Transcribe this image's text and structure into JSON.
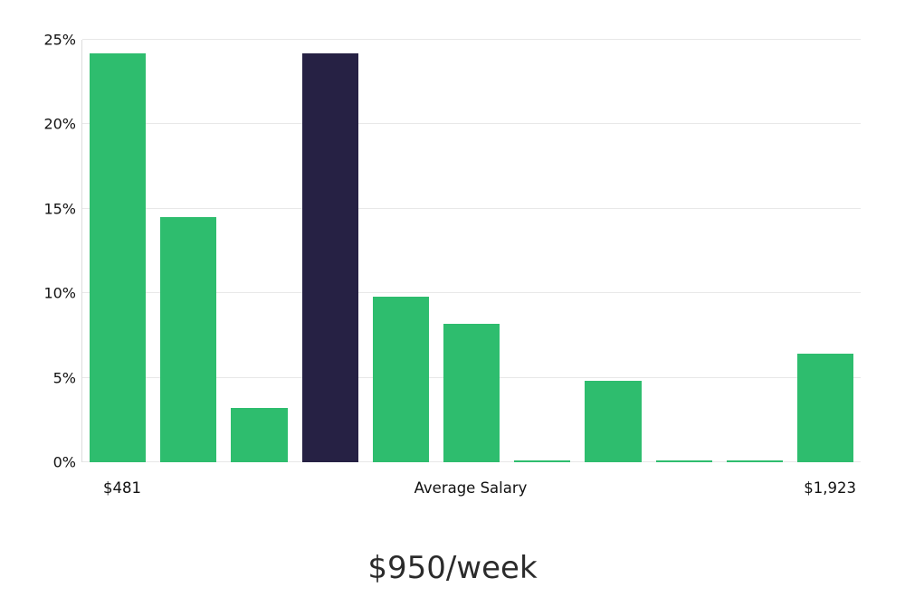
{
  "chart_data": {
    "type": "bar",
    "title": "",
    "xlabel": "",
    "ylabel": "",
    "values": [
      24.2,
      14.5,
      3.2,
      24.2,
      9.8,
      8.2,
      0.1,
      4.8,
      0.1,
      0.1,
      6.4
    ],
    "highlight_index": 3,
    "ylim": [
      0,
      25
    ],
    "yticks": [
      0,
      5,
      10,
      15,
      20,
      25
    ],
    "ytick_labels": [
      "0%",
      "5%",
      "10%",
      "15%",
      "20%",
      "25%"
    ],
    "x_axis_labels": {
      "left": "$481",
      "center": "Average Salary",
      "right": "$1,923"
    },
    "caption": "$950/week",
    "grid": true,
    "legend": "none",
    "colors": {
      "bar": "#2ebd6e",
      "highlight": "#262144",
      "grid": "#e8e8e8",
      "text": "#111111",
      "caption_text": "#2b2b2b",
      "background": "#ffffff"
    }
  }
}
